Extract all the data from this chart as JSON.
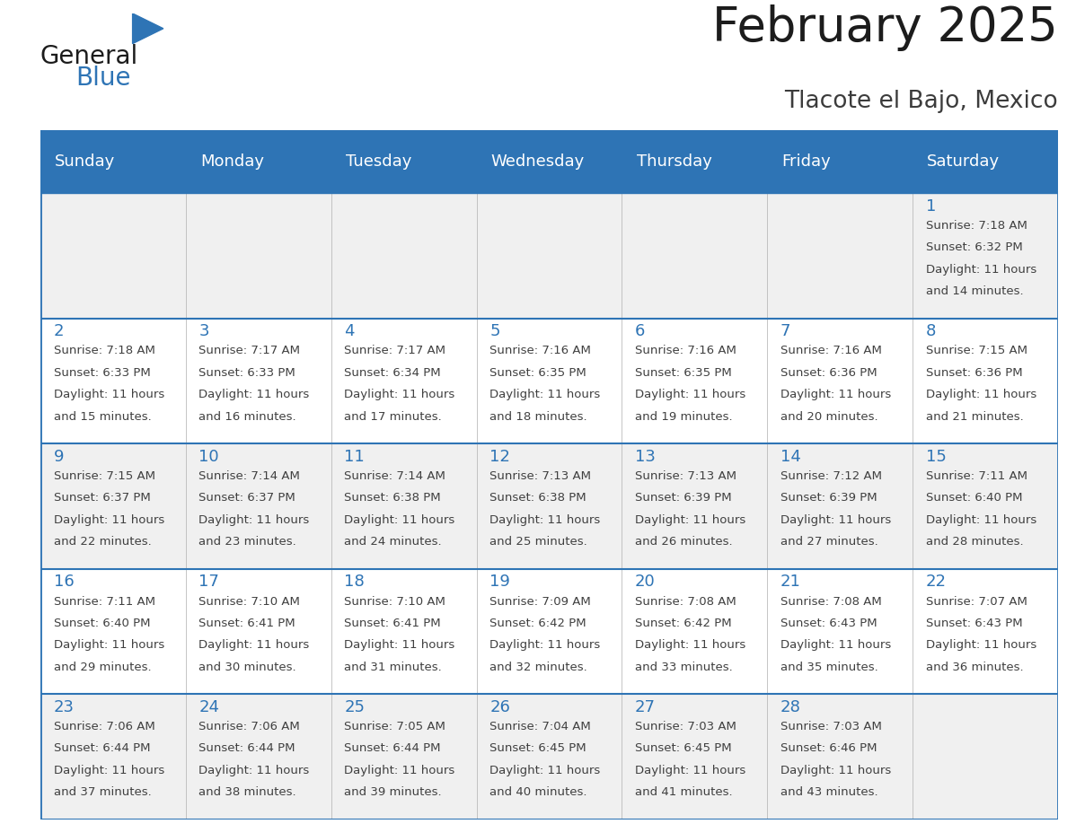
{
  "title": "February 2025",
  "subtitle": "Tlacote el Bajo, Mexico",
  "header_bg": "#2E74B5",
  "header_text_color": "#FFFFFF",
  "cell_bg_white": "#FFFFFF",
  "cell_bg_gray": "#F0F0F0",
  "day_number_color": "#2E74B5",
  "text_color": "#404040",
  "border_color": "#2E74B5",
  "days_of_week": [
    "Sunday",
    "Monday",
    "Tuesday",
    "Wednesday",
    "Thursday",
    "Friday",
    "Saturday"
  ],
  "calendar_data": [
    [
      null,
      null,
      null,
      null,
      null,
      null,
      {
        "day": 1,
        "sunrise": "7:18 AM",
        "sunset": "6:32 PM",
        "daylight_hours": "11 hours",
        "daylight_mins": "and 14 minutes."
      }
    ],
    [
      {
        "day": 2,
        "sunrise": "7:18 AM",
        "sunset": "6:33 PM",
        "daylight_hours": "11 hours",
        "daylight_mins": "and 15 minutes."
      },
      {
        "day": 3,
        "sunrise": "7:17 AM",
        "sunset": "6:33 PM",
        "daylight_hours": "11 hours",
        "daylight_mins": "and 16 minutes."
      },
      {
        "day": 4,
        "sunrise": "7:17 AM",
        "sunset": "6:34 PM",
        "daylight_hours": "11 hours",
        "daylight_mins": "and 17 minutes."
      },
      {
        "day": 5,
        "sunrise": "7:16 AM",
        "sunset": "6:35 PM",
        "daylight_hours": "11 hours",
        "daylight_mins": "and 18 minutes."
      },
      {
        "day": 6,
        "sunrise": "7:16 AM",
        "sunset": "6:35 PM",
        "daylight_hours": "11 hours",
        "daylight_mins": "and 19 minutes."
      },
      {
        "day": 7,
        "sunrise": "7:16 AM",
        "sunset": "6:36 PM",
        "daylight_hours": "11 hours",
        "daylight_mins": "and 20 minutes."
      },
      {
        "day": 8,
        "sunrise": "7:15 AM",
        "sunset": "6:36 PM",
        "daylight_hours": "11 hours",
        "daylight_mins": "and 21 minutes."
      }
    ],
    [
      {
        "day": 9,
        "sunrise": "7:15 AM",
        "sunset": "6:37 PM",
        "daylight_hours": "11 hours",
        "daylight_mins": "and 22 minutes."
      },
      {
        "day": 10,
        "sunrise": "7:14 AM",
        "sunset": "6:37 PM",
        "daylight_hours": "11 hours",
        "daylight_mins": "and 23 minutes."
      },
      {
        "day": 11,
        "sunrise": "7:14 AM",
        "sunset": "6:38 PM",
        "daylight_hours": "11 hours",
        "daylight_mins": "and 24 minutes."
      },
      {
        "day": 12,
        "sunrise": "7:13 AM",
        "sunset": "6:38 PM",
        "daylight_hours": "11 hours",
        "daylight_mins": "and 25 minutes."
      },
      {
        "day": 13,
        "sunrise": "7:13 AM",
        "sunset": "6:39 PM",
        "daylight_hours": "11 hours",
        "daylight_mins": "and 26 minutes."
      },
      {
        "day": 14,
        "sunrise": "7:12 AM",
        "sunset": "6:39 PM",
        "daylight_hours": "11 hours",
        "daylight_mins": "and 27 minutes."
      },
      {
        "day": 15,
        "sunrise": "7:11 AM",
        "sunset": "6:40 PM",
        "daylight_hours": "11 hours",
        "daylight_mins": "and 28 minutes."
      }
    ],
    [
      {
        "day": 16,
        "sunrise": "7:11 AM",
        "sunset": "6:40 PM",
        "daylight_hours": "11 hours",
        "daylight_mins": "and 29 minutes."
      },
      {
        "day": 17,
        "sunrise": "7:10 AM",
        "sunset": "6:41 PM",
        "daylight_hours": "11 hours",
        "daylight_mins": "and 30 minutes."
      },
      {
        "day": 18,
        "sunrise": "7:10 AM",
        "sunset": "6:41 PM",
        "daylight_hours": "11 hours",
        "daylight_mins": "and 31 minutes."
      },
      {
        "day": 19,
        "sunrise": "7:09 AM",
        "sunset": "6:42 PM",
        "daylight_hours": "11 hours",
        "daylight_mins": "and 32 minutes."
      },
      {
        "day": 20,
        "sunrise": "7:08 AM",
        "sunset": "6:42 PM",
        "daylight_hours": "11 hours",
        "daylight_mins": "and 33 minutes."
      },
      {
        "day": 21,
        "sunrise": "7:08 AM",
        "sunset": "6:43 PM",
        "daylight_hours": "11 hours",
        "daylight_mins": "and 35 minutes."
      },
      {
        "day": 22,
        "sunrise": "7:07 AM",
        "sunset": "6:43 PM",
        "daylight_hours": "11 hours",
        "daylight_mins": "and 36 minutes."
      }
    ],
    [
      {
        "day": 23,
        "sunrise": "7:06 AM",
        "sunset": "6:44 PM",
        "daylight_hours": "11 hours",
        "daylight_mins": "and 37 minutes."
      },
      {
        "day": 24,
        "sunrise": "7:06 AM",
        "sunset": "6:44 PM",
        "daylight_hours": "11 hours",
        "daylight_mins": "and 38 minutes."
      },
      {
        "day": 25,
        "sunrise": "7:05 AM",
        "sunset": "6:44 PM",
        "daylight_hours": "11 hours",
        "daylight_mins": "and 39 minutes."
      },
      {
        "day": 26,
        "sunrise": "7:04 AM",
        "sunset": "6:45 PM",
        "daylight_hours": "11 hours",
        "daylight_mins": "and 40 minutes."
      },
      {
        "day": 27,
        "sunrise": "7:03 AM",
        "sunset": "6:45 PM",
        "daylight_hours": "11 hours",
        "daylight_mins": "and 41 minutes."
      },
      {
        "day": 28,
        "sunrise": "7:03 AM",
        "sunset": "6:46 PM",
        "daylight_hours": "11 hours",
        "daylight_mins": "and 43 minutes."
      },
      null
    ]
  ],
  "logo_text_general": "General",
  "logo_text_blue": "Blue",
  "title_fontsize": 38,
  "subtitle_fontsize": 19,
  "header_fontsize": 13,
  "day_number_fontsize": 13,
  "cell_text_fontsize": 9.5
}
